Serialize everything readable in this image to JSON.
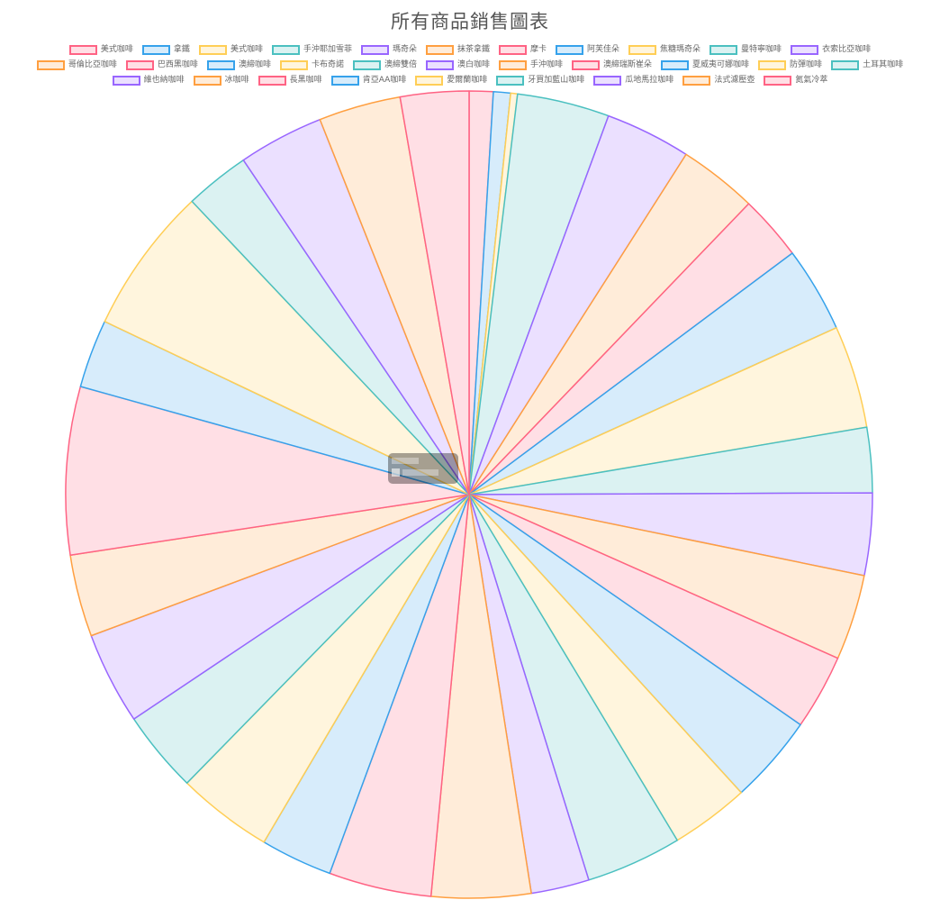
{
  "chart_data": {
    "type": "pie",
    "title": "所有商品銷售圖表",
    "legend_position": "top",
    "palette": [
      {
        "border": "#ff6384",
        "fill": "#ffdfe5"
      },
      {
        "border": "#36a2eb",
        "fill": "#d7ecfb"
      },
      {
        "border": "#ffce56",
        "fill": "#fff5dd"
      },
      {
        "border": "#4bc0c0",
        "fill": "#dbf2f2"
      },
      {
        "border": "#9966ff",
        "fill": "#ebe0ff"
      },
      {
        "border": "#ff9f40",
        "fill": "#ffecd9"
      }
    ],
    "categories": [
      "美式咖啡",
      "拿鐵",
      "美式咖啡",
      "手沖耶加雪菲",
      "瑪奇朵",
      "抹茶拿鐵",
      "摩卡",
      "阿芙佳朵",
      "焦糖瑪奇朵",
      "曼特寧咖啡",
      "衣索比亞咖啡",
      "哥倫比亞咖啡",
      "巴西黑咖啡",
      "澳締咖啡",
      "卡布奇諾",
      "澳締雙倍",
      "澳白咖啡",
      "手沖咖啡",
      "澳締瑞斯崔朵",
      "夏威夷可娜咖啡",
      "防彈咖啡",
      "土耳其咖啡",
      "維也納咖啡",
      "冰咖啡",
      "長黑咖啡",
      "肯亞AA咖啡",
      "愛爾蘭咖啡",
      "牙買加藍山咖啡",
      "瓜地馬拉咖啡",
      "法式濾壓壺",
      "氮氣冷萃"
    ],
    "values": [
      0.7,
      0.5,
      0.2,
      2.7,
      2.5,
      2.3,
      1.9,
      2.5,
      3.0,
      1.9,
      2.4,
      2.5,
      2.2,
      2.6,
      2.3,
      2.8,
      1.7,
      2.9,
      3.0,
      2.1,
      2.8,
      2.4,
      2.7,
      2.4,
      4.9,
      2.0,
      4.3,
      1.9,
      2.5,
      2.4,
      2.0
    ]
  },
  "tooltip": {
    "visible": true
  }
}
